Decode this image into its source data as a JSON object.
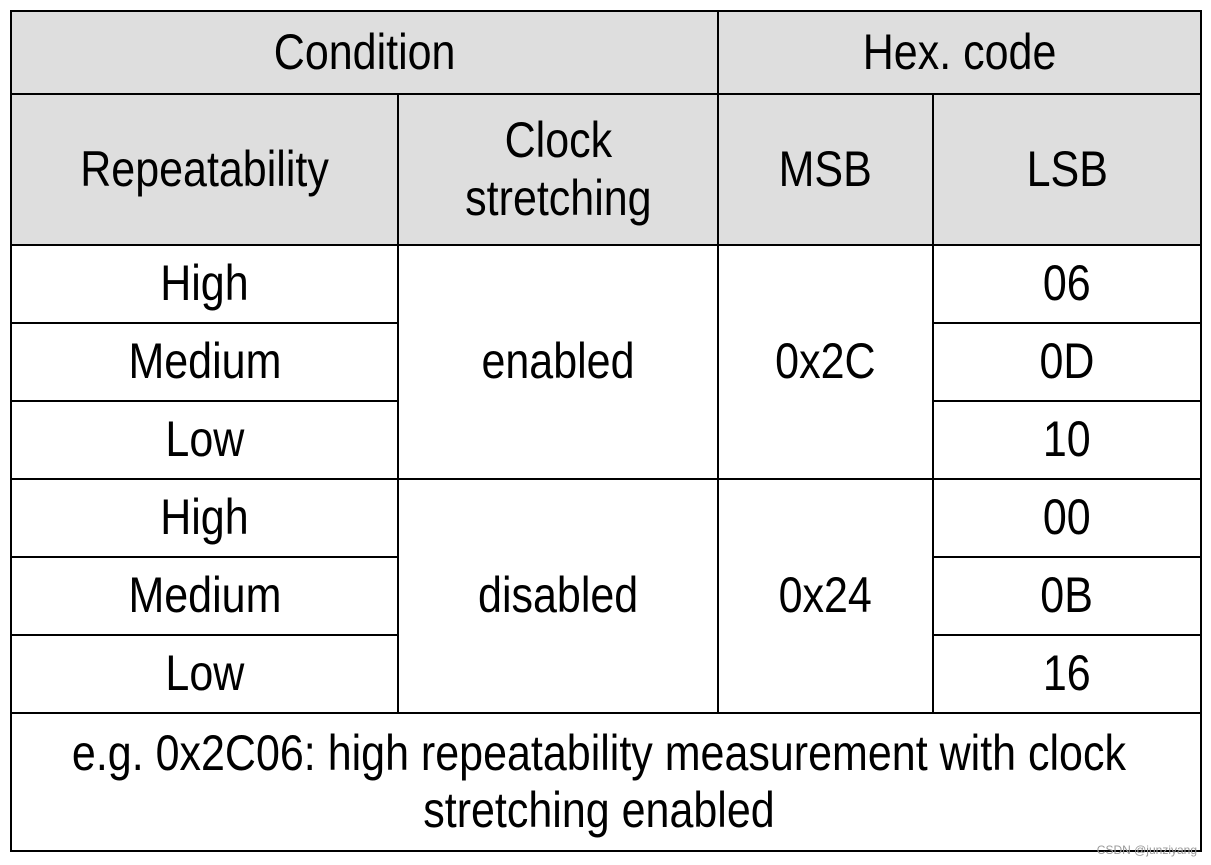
{
  "table": {
    "header_top": {
      "condition": "Condition",
      "hex_code": "Hex. code"
    },
    "header_sub": {
      "repeatability": "Repeatability",
      "clock_stretching_line1": "Clock",
      "clock_stretching_line2": "stretching",
      "msb": "MSB",
      "lsb": "LSB"
    },
    "groups": [
      {
        "clock_stretching": "enabled",
        "msb": "0x2C",
        "rows": [
          {
            "repeatability": "High",
            "lsb": "06"
          },
          {
            "repeatability": "Medium",
            "lsb": "0D"
          },
          {
            "repeatability": "Low",
            "lsb": "10"
          }
        ]
      },
      {
        "clock_stretching": "disabled",
        "msb": "0x24",
        "rows": [
          {
            "repeatability": "High",
            "lsb": "00"
          },
          {
            "repeatability": "Medium",
            "lsb": "0B"
          },
          {
            "repeatability": "Low",
            "lsb": "16"
          }
        ]
      }
    ],
    "note_line1": "e.g. 0x2C06: high repeatability measurement with clock",
    "note_line2": "stretching enabled"
  },
  "watermark": "CSDN @junziyang"
}
